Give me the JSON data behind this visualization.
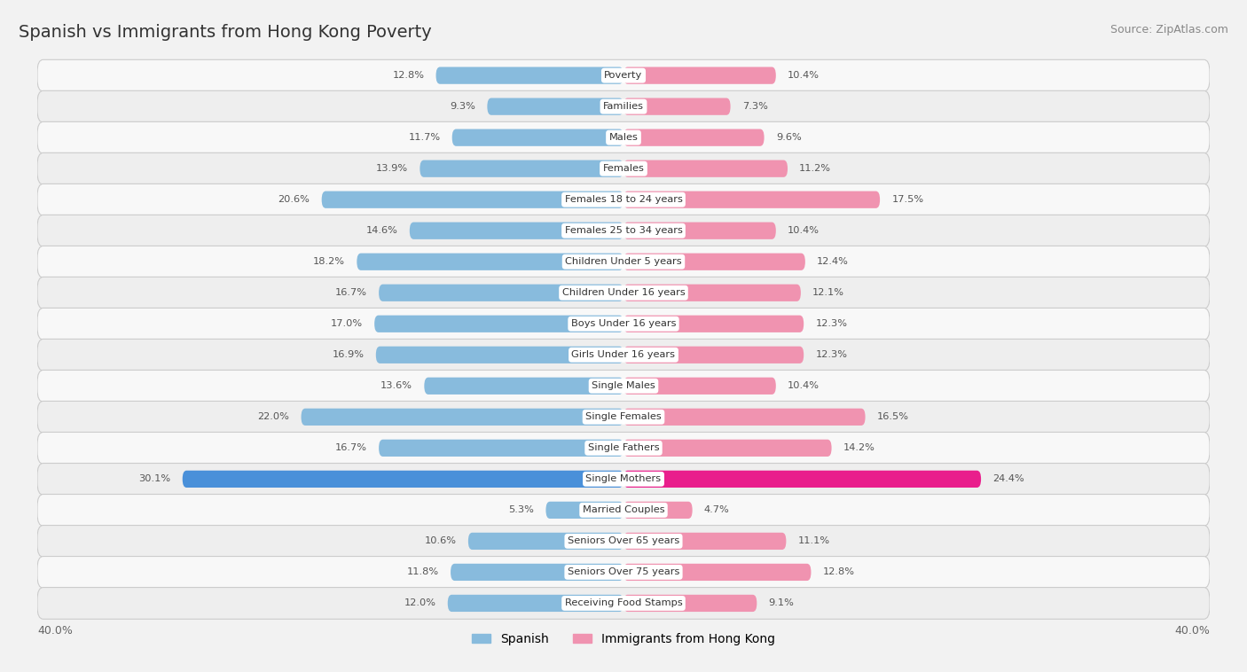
{
  "title": "Spanish vs Immigrants from Hong Kong Poverty",
  "source": "Source: ZipAtlas.com",
  "categories": [
    "Poverty",
    "Families",
    "Males",
    "Females",
    "Females 18 to 24 years",
    "Females 25 to 34 years",
    "Children Under 5 years",
    "Children Under 16 years",
    "Boys Under 16 years",
    "Girls Under 16 years",
    "Single Males",
    "Single Females",
    "Single Fathers",
    "Single Mothers",
    "Married Couples",
    "Seniors Over 65 years",
    "Seniors Over 75 years",
    "Receiving Food Stamps"
  ],
  "spanish_values": [
    12.8,
    9.3,
    11.7,
    13.9,
    20.6,
    14.6,
    18.2,
    16.7,
    17.0,
    16.9,
    13.6,
    22.0,
    16.7,
    30.1,
    5.3,
    10.6,
    11.8,
    12.0
  ],
  "hk_values": [
    10.4,
    7.3,
    9.6,
    11.2,
    17.5,
    10.4,
    12.4,
    12.1,
    12.3,
    12.3,
    10.4,
    16.5,
    14.2,
    24.4,
    4.7,
    11.1,
    12.8,
    9.1
  ],
  "spanish_color": "#88bbdd",
  "hk_color": "#f093b0",
  "spanish_highlight_color": "#4a90d9",
  "hk_highlight_color": "#e91e8c",
  "axis_max": 40.0,
  "background_color": "#f2f2f2",
  "row_even_color": "#f8f8f8",
  "row_odd_color": "#eeeeee",
  "separator_color": "#cccccc",
  "label_color": "#444444",
  "value_color": "#555555",
  "title_color": "#333333",
  "bar_height": 0.55
}
